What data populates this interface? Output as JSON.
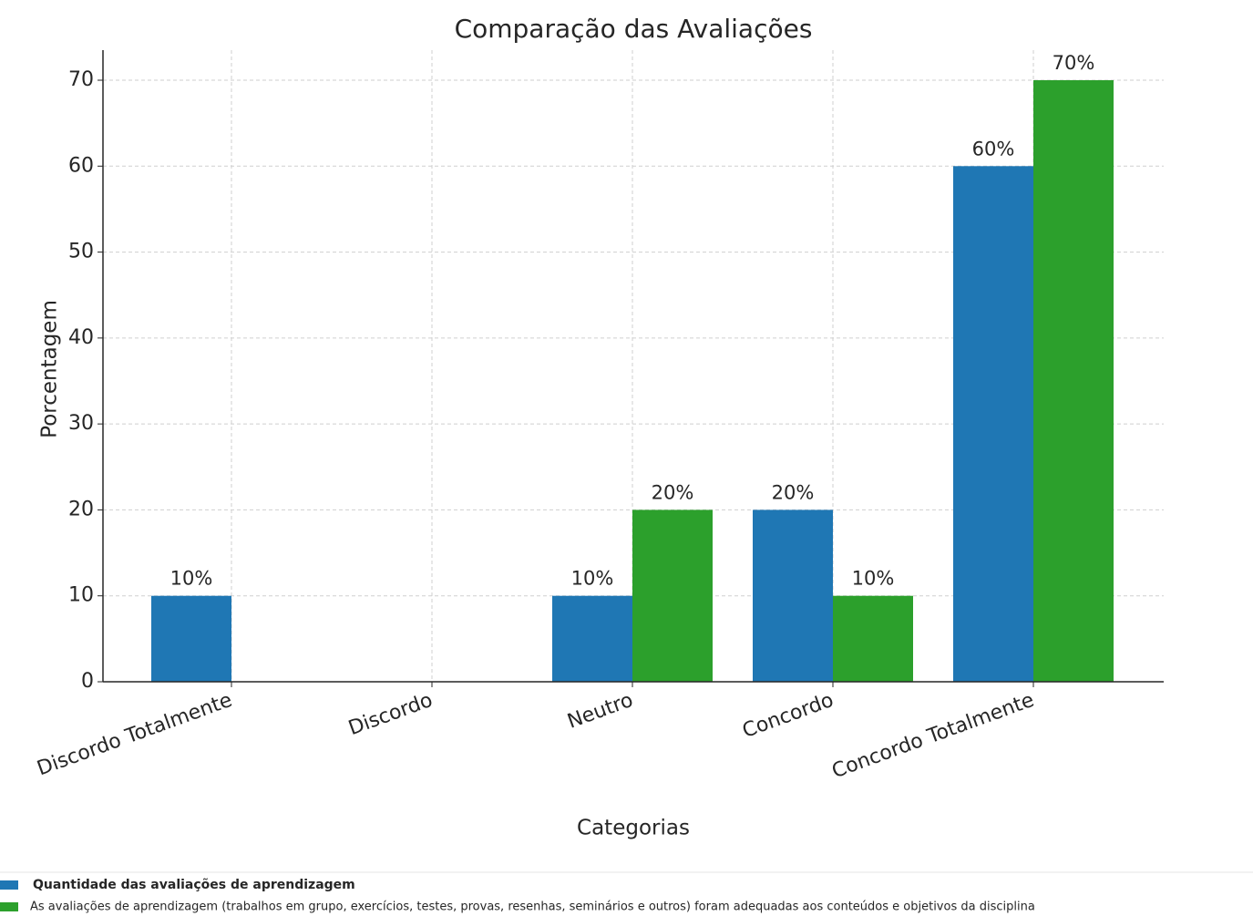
{
  "chart_data": {
    "type": "bar",
    "title": "Comparação das Avaliações",
    "x_label": "Categorias",
    "y_label": "Porcentagem",
    "categories": [
      "Discordo Totalmente",
      "Discordo",
      "Neutro",
      "Concordo",
      "Concordo Totalmente"
    ],
    "series": [
      {
        "name": "Quantidade das avaliações de aprendizagem",
        "color": "#1f77b4",
        "values": [
          10,
          0,
          10,
          20,
          60
        ],
        "value_labels": [
          "10%",
          null,
          "10%",
          "20%",
          "60%"
        ]
      },
      {
        "name": "As avaliações de aprendizagem (trabalhos em grupo, exercícios, testes, provas, resenhas, seminários e outros) foram adequadas aos conteúdos e objetivos da disciplina",
        "color": "#2ca02c",
        "values": [
          0,
          0,
          20,
          10,
          70
        ],
        "value_labels": [
          null,
          null,
          "20%",
          "10%",
          "70%"
        ]
      }
    ],
    "ylim": [
      0,
      73.5
    ],
    "yticks": [
      0,
      10,
      20,
      30,
      40,
      50,
      60,
      70
    ],
    "grid": true,
    "legend": "bottom"
  }
}
